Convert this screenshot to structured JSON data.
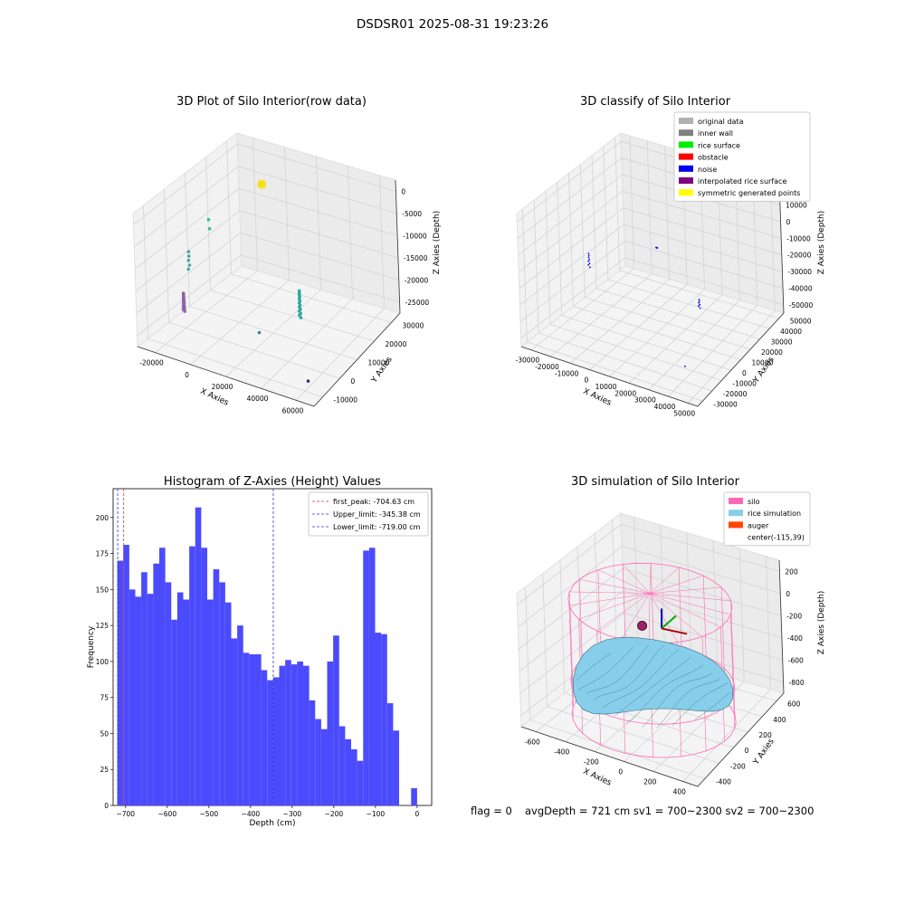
{
  "figure_title": "DSDSR01 2025-08-31 19:23:26",
  "footer": {
    "flag": "flag = 0",
    "stats": "avgDepth = 721 cm  sv1 = 700~2300  sv2 = 700~2300"
  },
  "chart_data": [
    {
      "id": "raw3d",
      "type": "scatter",
      "projection": "3d",
      "title": "3D Plot of Silo Interior(row data)",
      "xlabel": "X Axies",
      "ylabel": "Y Axies",
      "zlabel": "Z Axies (Depth)",
      "xticks": [
        "-20000",
        "0",
        "20000",
        "40000",
        "60000"
      ],
      "yticks": [
        "-10000",
        "0",
        "10000",
        "20000",
        "30000"
      ],
      "zticks": [
        "0",
        "-5000",
        "-10000",
        "-15000",
        "-20000",
        "-25000"
      ],
      "grid": true,
      "point_groups": [
        {
          "label": "left wall streak",
          "color": "#8a62a8",
          "x": -21000,
          "y": 0,
          "z_from": -20000,
          "z_to": -24000,
          "count": 14
        },
        {
          "label": "upper-left teal points",
          "color": "#4aa3a8",
          "x": -15000,
          "y": -2000,
          "z_from": -9000,
          "z_to": -13000,
          "count": 5
        },
        {
          "label": "green points",
          "color": "#3cbf88",
          "x": -12000,
          "y": 5000,
          "z_from": -4000,
          "z_to": -6000,
          "count": 2
        },
        {
          "label": "yellow cluster",
          "color": "#f5e01e",
          "x": -3000,
          "y": 22000,
          "z": -1200,
          "count": 1
        },
        {
          "label": "right teal streak",
          "color": "#2ba8a0",
          "x": 30000,
          "y": 10000,
          "z_from": -16000,
          "z_to": -22000,
          "count": 14
        },
        {
          "label": "teal point",
          "color": "#238a8d",
          "x": 22000,
          "y": -2000,
          "z": -22000,
          "count": 1
        },
        {
          "label": "dark purple point",
          "color": "#3b2a80",
          "x": 55000,
          "y": -8000,
          "z": -26000,
          "count": 1
        }
      ]
    },
    {
      "id": "classify3d",
      "type": "scatter",
      "projection": "3d",
      "title": "3D classify of Silo Interior",
      "xlabel": "X Axies",
      "ylabel": "Y Axies",
      "zlabel": "Z Axies (Depth)",
      "xticks": [
        "-30000",
        "-20000",
        "-10000",
        "0",
        "10000",
        "20000",
        "30000",
        "40000",
        "50000"
      ],
      "yticks": [
        "-30000",
        "-20000",
        "-10000",
        "0",
        "10000",
        "20000",
        "30000",
        "40000",
        "50000"
      ],
      "zticks": [
        "20000",
        "10000",
        "0",
        "-10000",
        "-20000",
        "-30000",
        "-40000",
        "-50000"
      ],
      "grid": true,
      "legend": {
        "position": "top-right",
        "entries": [
          {
            "label": "original data",
            "color": "#b0b0b0"
          },
          {
            "label": "inner wall",
            "color": "#808080"
          },
          {
            "label": "rice surface",
            "color": "#00ee00"
          },
          {
            "label": "obstacle",
            "color": "#ff0000"
          },
          {
            "label": "noise",
            "color": "#0000ee"
          },
          {
            "label": "interpolated rice surface",
            "color": "#800080"
          },
          {
            "label": "symmetric generated points",
            "color": "#ffff00"
          }
        ]
      },
      "point_groups": [
        {
          "label": "noise streak left",
          "color": "#0000ee",
          "x": -20000,
          "y": 0,
          "z_from": -12000,
          "z_to": -20000,
          "count": 8
        },
        {
          "label": "noise cluster",
          "color": "#0000ee",
          "x": 3000,
          "y": 20000,
          "z": -10000,
          "count": 5
        },
        {
          "label": "noise streak right",
          "color": "#0000ee",
          "x": 30000,
          "y": 10000,
          "z_from": -25000,
          "z_to": -30000,
          "count": 6
        },
        {
          "label": "noise scattered",
          "color": "#0000ee",
          "x": 40000,
          "y": -20000,
          "z": -45000,
          "count": 1
        }
      ]
    },
    {
      "id": "hist",
      "type": "bar",
      "title": "Histogram of Z-Axies (Height) Values",
      "xlabel": "Depth (cm)",
      "ylabel": "Frequency",
      "xlim": [
        -730,
        35
      ],
      "ylim": [
        0,
        220
      ],
      "xticks": [
        -700,
        -600,
        -500,
        -400,
        -300,
        -200,
        -100,
        0
      ],
      "yticks": [
        0,
        25,
        50,
        75,
        100,
        125,
        150,
        175,
        200
      ],
      "bin_start": -720,
      "bin_width": 14.4,
      "bar_color": "#4b4bfd",
      "values": [
        170,
        181,
        150,
        145,
        162,
        147,
        168,
        179,
        155,
        129,
        148,
        143,
        180,
        207,
        179,
        143,
        164,
        155,
        141,
        116,
        125,
        106,
        105,
        105,
        94,
        87,
        89,
        97,
        101,
        98,
        100,
        97,
        73,
        60,
        53,
        100,
        118,
        55,
        46,
        39,
        31,
        177,
        179,
        120,
        119,
        71,
        52,
        0,
        0,
        12
      ],
      "vlines": [
        {
          "label": "first_peak: -704.63 cm",
          "x": -704.63,
          "color": "#ee3333"
        },
        {
          "label": "Upper_limit: -345.38 cm",
          "x": -345.38,
          "color": "#3333cc"
        },
        {
          "label": "Lower_limit: -719.00 cm",
          "x": -719.0,
          "color": "#3333cc"
        }
      ],
      "legend": {
        "position": "top-right"
      }
    },
    {
      "id": "sim3d",
      "type": "surface",
      "projection": "3d",
      "title": "3D simulation of Silo Interior",
      "xlabel": "X Axies",
      "ylabel": "Y Axies",
      "zlabel": "Z Axies (Depth)",
      "xticks": [
        "-600",
        "-400",
        "-200",
        "0",
        "200",
        "400"
      ],
      "yticks": [
        "-400",
        "-200",
        "0",
        "200",
        "400",
        "600"
      ],
      "zticks": [
        "200",
        "0",
        "-200",
        "-400",
        "-600",
        "-800"
      ],
      "grid": true,
      "legend": {
        "position": "top-right",
        "entries": [
          {
            "label": "silo",
            "color": "#ff69b4"
          },
          {
            "label": "rice simulation",
            "color": "#87ceeb"
          },
          {
            "label": "auger",
            "color": "#ff4500"
          },
          {
            "label": "center(-115,39)",
            "color": ""
          }
        ]
      },
      "center": [
        -115,
        39
      ],
      "colors": {
        "silo": "#ff69b4",
        "rice": "#87ceeb",
        "marker": "#a0206e"
      }
    }
  ]
}
